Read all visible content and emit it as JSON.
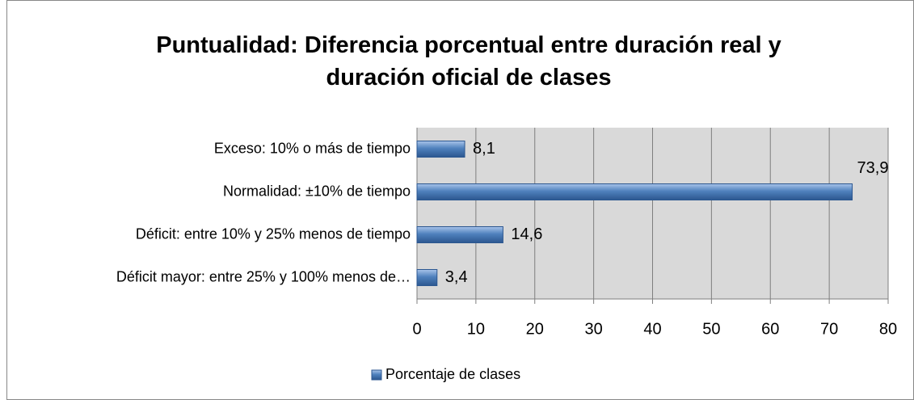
{
  "chart_data": {
    "type": "bar",
    "orientation": "horizontal",
    "title": "Puntualidad: Diferencia porcentual entre duración real y duración oficial de clases",
    "categories": [
      "Exceso: 10% o más de tiempo",
      "Normalidad: ±10% de tiempo",
      "Déficit: entre 10% y 25% menos de tiempo",
      "Déficit mayor: entre 25% y 100% menos de…"
    ],
    "series": [
      {
        "name": "Porcentaje de clases",
        "color": "#4f81bd",
        "values": [
          8.1,
          73.9,
          14.6,
          3.4
        ],
        "value_labels": [
          "8,1",
          "73,9",
          "14,6",
          "3,4"
        ]
      }
    ],
    "xlim": [
      0,
      80
    ],
    "xticks": [
      0,
      10,
      20,
      30,
      40,
      50,
      60,
      70,
      80
    ],
    "grid": true,
    "legend": "bottom"
  }
}
